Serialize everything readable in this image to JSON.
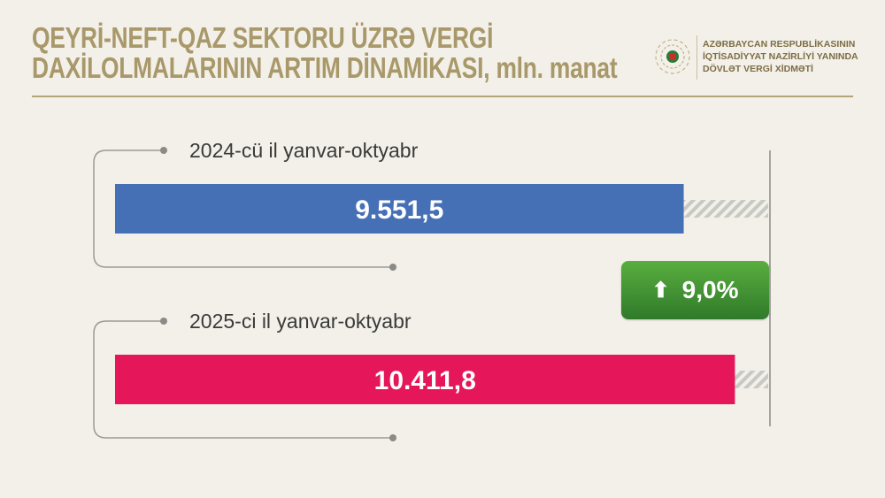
{
  "header": {
    "title_line1": "QEYRİ-NEFT-QAZ SEKTORU ÜZRƏ VERGİ",
    "title_line2": "DAXİLOLMALARININ ARTIM DİNAMİKASI, mln. manat",
    "org_line1": "AZƏRBAYCAN RESPUBLİKASININ",
    "org_line2": "İQTİSADİYYAT NAZİRLİYİ YANINDA",
    "org_line3": "DÖVLƏT VERGİ XİDMƏTİ"
  },
  "chart_data": {
    "type": "bar",
    "orientation": "horizontal",
    "title": "QEYRİ-NEFT-QAZ SEKTORU ÜZRƏ VERGİ DAXİLOLMALARININ ARTIM DİNAMİKASI, mln. manat",
    "categories": [
      "2024-cü il yanvar-oktyabr",
      "2025-ci il yanvar-oktyabr"
    ],
    "values": [
      9551.5,
      10411.8
    ],
    "value_labels": [
      "9.551,5",
      "10.411,8"
    ],
    "colors": [
      "#4670b5",
      "#e5175a"
    ],
    "xlim": [
      0,
      11000
    ],
    "grid": false,
    "growth_label": "9,0%",
    "growth_icon": "arrow-up-icon",
    "growth_color": "#3f8f33"
  }
}
